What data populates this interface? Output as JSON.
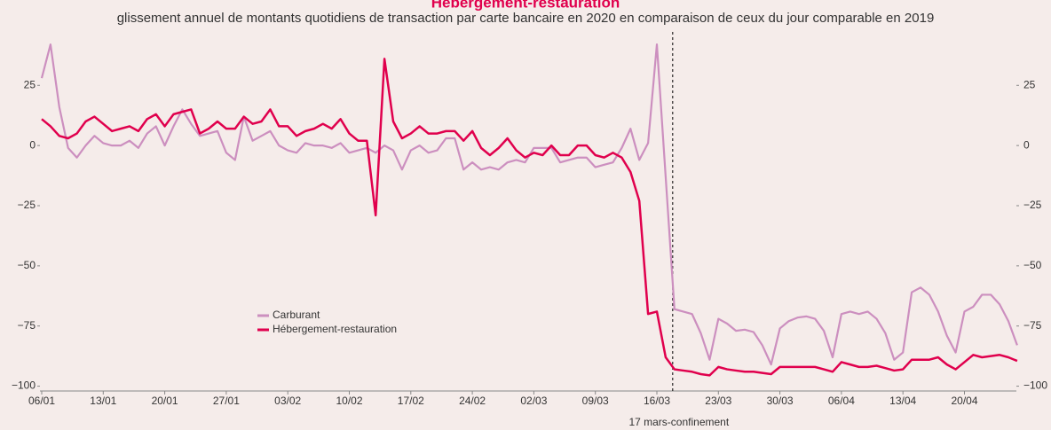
{
  "chart_data": {
    "type": "line",
    "title": "Hébergement-restauration",
    "subtitle": "glissement annuel de montants quotidiens de transaction par carte bancaire en 2020 en comparaison de ceux du jour comparable en 2019",
    "categories": [
      "06/01",
      null,
      null,
      null,
      null,
      null,
      null,
      "13/01",
      null,
      null,
      null,
      null,
      null,
      null,
      "20/01",
      null,
      null,
      null,
      null,
      null,
      null,
      "27/01",
      null,
      null,
      null,
      null,
      null,
      null,
      "03/02",
      null,
      null,
      null,
      null,
      null,
      null,
      "10/02",
      null,
      null,
      null,
      null,
      null,
      null,
      "17/02",
      null,
      null,
      null,
      null,
      null,
      null,
      "24/02",
      null,
      null,
      null,
      null,
      null,
      null,
      "02/03",
      null,
      null,
      null,
      null,
      null,
      null,
      "09/03",
      null,
      null,
      null,
      null,
      null,
      null,
      "16/03",
      null,
      null,
      null,
      null,
      null,
      null,
      "23/03",
      null,
      null,
      null,
      null,
      null,
      null,
      "30/03",
      null,
      null,
      null,
      null,
      null,
      null,
      "06/04",
      null,
      null,
      null,
      null,
      null,
      null,
      "13/04",
      null,
      null,
      null,
      null,
      null,
      null,
      "20/04",
      null,
      null,
      null,
      null,
      null,
      null
    ],
    "series": [
      {
        "name": "Carburant",
        "color": "#cc8fbf",
        "values": [
          28,
          42,
          16,
          -1,
          -5,
          0,
          4,
          1,
          0,
          0,
          2,
          -1,
          5,
          8,
          0,
          8,
          15,
          9,
          4,
          5,
          6,
          -3,
          -6,
          12,
          2,
          4,
          6,
          0,
          -2,
          -3,
          1,
          0,
          0,
          -1,
          1,
          -3,
          -2,
          -1,
          -3,
          0,
          -2,
          -10,
          -2,
          0,
          -3,
          -2,
          3,
          3,
          -10,
          -7,
          -10,
          -9,
          -10,
          -7,
          -6,
          -7,
          -1,
          -1,
          -1,
          -7,
          -6,
          -5,
          -5,
          -9,
          -8,
          -7,
          -1,
          7,
          -6,
          1,
          42,
          -13,
          -68,
          -69,
          -70,
          -78,
          -89,
          -72,
          -74,
          -77,
          -76.5,
          -77.5,
          -83,
          -91,
          -76,
          -73,
          -71.5,
          -71,
          -72,
          -77,
          -88,
          -70,
          -69,
          -70,
          -69,
          -72,
          -78,
          -89,
          -86,
          -61,
          -59,
          -62,
          -69,
          -79,
          -86,
          -69,
          -67,
          -62,
          -62,
          -66,
          -73,
          -83
        ]
      },
      {
        "name": "Hébergement-restauration",
        "color": "#e0004d",
        "values": [
          11,
          8,
          4,
          3,
          5,
          10,
          12,
          9,
          6,
          7,
          8,
          6,
          11,
          13,
          8,
          13,
          14,
          15,
          5,
          7,
          10,
          7,
          7,
          12,
          9,
          10,
          15,
          8,
          8,
          4,
          6,
          7,
          9,
          7,
          11,
          5,
          2,
          2,
          -29,
          36,
          10,
          3,
          5,
          8,
          5,
          5,
          6,
          6,
          2,
          6,
          -1,
          -4,
          -1,
          3,
          -2,
          -5,
          -3,
          -4,
          0,
          -4,
          -4,
          0,
          0,
          -4,
          -5,
          -3,
          -5,
          -11,
          -23,
          -70,
          -69,
          -88,
          -93,
          -93.5,
          -94,
          -95,
          -95.5,
          -92,
          -93,
          -93.5,
          -94,
          -94,
          -94.5,
          -95,
          -92,
          -92,
          -92,
          -92,
          -92,
          -93,
          -94,
          -90,
          -91,
          -92,
          -92,
          -91.5,
          -92.5,
          -93.5,
          -93,
          -89,
          -89,
          -89,
          -88,
          -91,
          -93,
          -90,
          -87,
          -88,
          -87.5,
          -87,
          -88,
          -89.5
        ]
      }
    ],
    "ylim": [
      -102,
      45
    ],
    "yticks": [
      {
        "value": -100,
        "label": "−100"
      },
      {
        "value": -75,
        "label": "−75"
      },
      {
        "value": -50,
        "label": "−50"
      },
      {
        "value": -25,
        "label": "−25"
      },
      0,
      25
    ],
    "grid": false,
    "annotation": {
      "text": "17 mars-confinement",
      "x": 71.8
    }
  }
}
